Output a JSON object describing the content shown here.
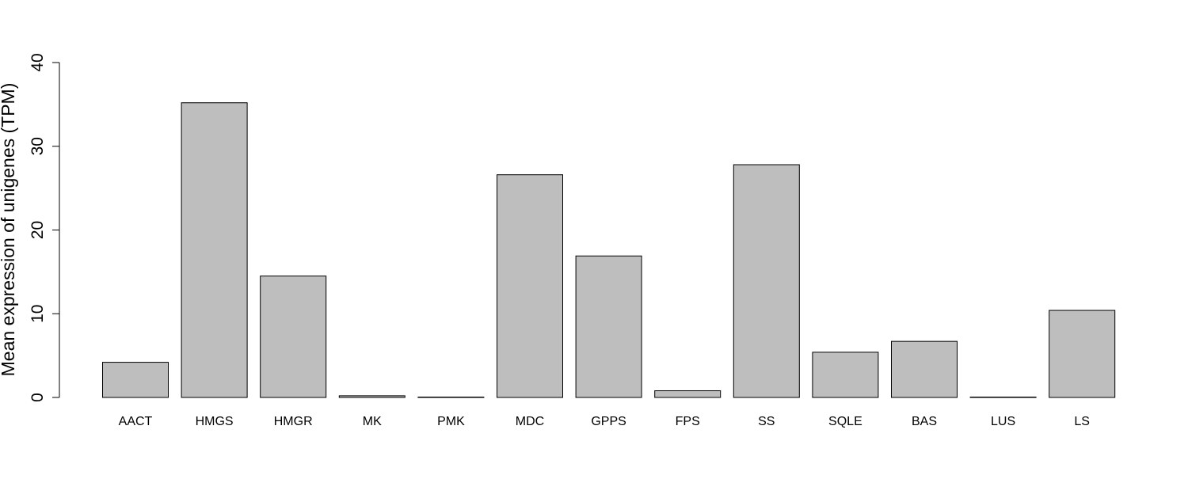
{
  "chart_data": {
    "type": "bar",
    "title": "",
    "xlabel": "",
    "ylabel": "Mean expression of unigenes (TPM)",
    "ylim": [
      0,
      40
    ],
    "yticks": [
      0,
      10,
      20,
      30,
      40
    ],
    "grid": false,
    "categories": [
      "AACT",
      "HMGS",
      "HMGR",
      "MK",
      "PMK",
      "MDC",
      "GPPS",
      "FPS",
      "SS",
      "SQLE",
      "BAS",
      "LUS",
      "LS"
    ],
    "values": [
      4.2,
      35.2,
      14.5,
      0.2,
      0.05,
      26.6,
      16.9,
      0.8,
      27.8,
      5.4,
      6.7,
      0.05,
      10.4
    ],
    "bar_color": "#bebebe",
    "bar_border_color": "#000000"
  }
}
